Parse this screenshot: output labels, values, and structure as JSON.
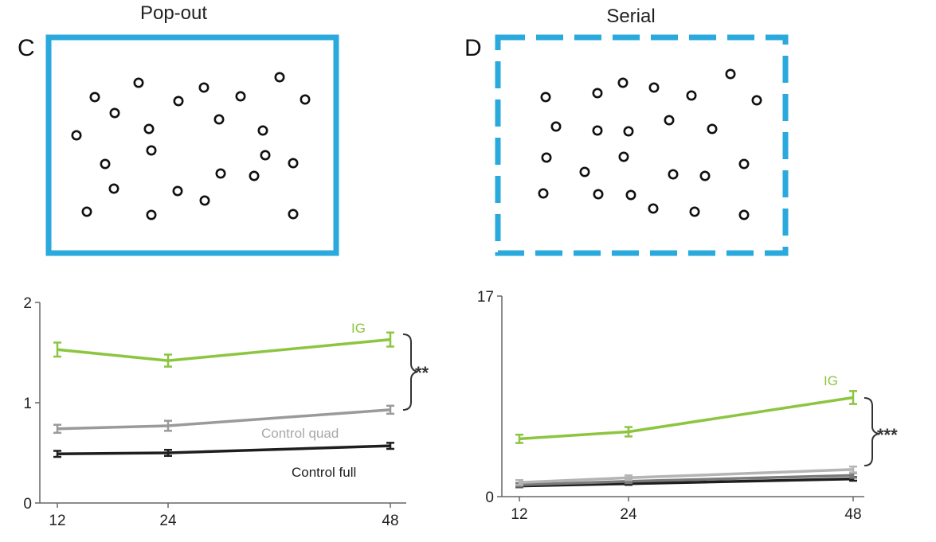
{
  "colors": {
    "frame": "#29a9dc",
    "ig": "#8cc540",
    "quad": "#9a9a9a",
    "full": "#1e1e1e",
    "axis": "#666666"
  },
  "panels": [
    {
      "letter": "C",
      "title": "Pop-out",
      "frame_style": "solid"
    },
    {
      "letter": "D",
      "title": "Serial",
      "frame_style": "dashed"
    }
  ],
  "chart_data": [
    {
      "type": "line",
      "x": [
        12,
        24,
        48
      ],
      "xticks": [
        "12",
        "24",
        "48"
      ],
      "ylim": [
        0,
        2
      ],
      "yticks": [
        "0",
        "1",
        "2"
      ],
      "series": [
        {
          "name": "IG",
          "values": [
            1.53,
            1.42,
            1.63
          ],
          "err": [
            0.07,
            0.06,
            0.07
          ]
        },
        {
          "name": "Control quad",
          "values": [
            0.74,
            0.77,
            0.93
          ],
          "err": [
            0.04,
            0.05,
            0.04
          ]
        },
        {
          "name": "Control full",
          "values": [
            0.49,
            0.5,
            0.57
          ],
          "err": [
            0.03,
            0.03,
            0.03
          ]
        }
      ],
      "significance": "**"
    },
    {
      "type": "line",
      "x": [
        12,
        24,
        48
      ],
      "xticks": [
        "12",
        "24",
        "48"
      ],
      "ylim": [
        0,
        17
      ],
      "yticks": [
        "0",
        "17"
      ],
      "series": [
        {
          "name": "IG",
          "values": [
            4.9,
            5.5,
            8.4
          ],
          "err": [
            0.35,
            0.4,
            0.55
          ]
        },
        {
          "name": "",
          "values": [
            1.2,
            1.6,
            2.3
          ],
          "err": [
            0.2,
            0.2,
            0.25
          ]
        },
        {
          "name": "",
          "values": [
            1.0,
            1.3,
            1.8
          ],
          "err": [
            0.15,
            0.15,
            0.2
          ]
        },
        {
          "name": "",
          "values": [
            0.9,
            1.1,
            1.5
          ],
          "err": [
            0.1,
            0.1,
            0.15
          ]
        }
      ],
      "significance": "***"
    }
  ]
}
